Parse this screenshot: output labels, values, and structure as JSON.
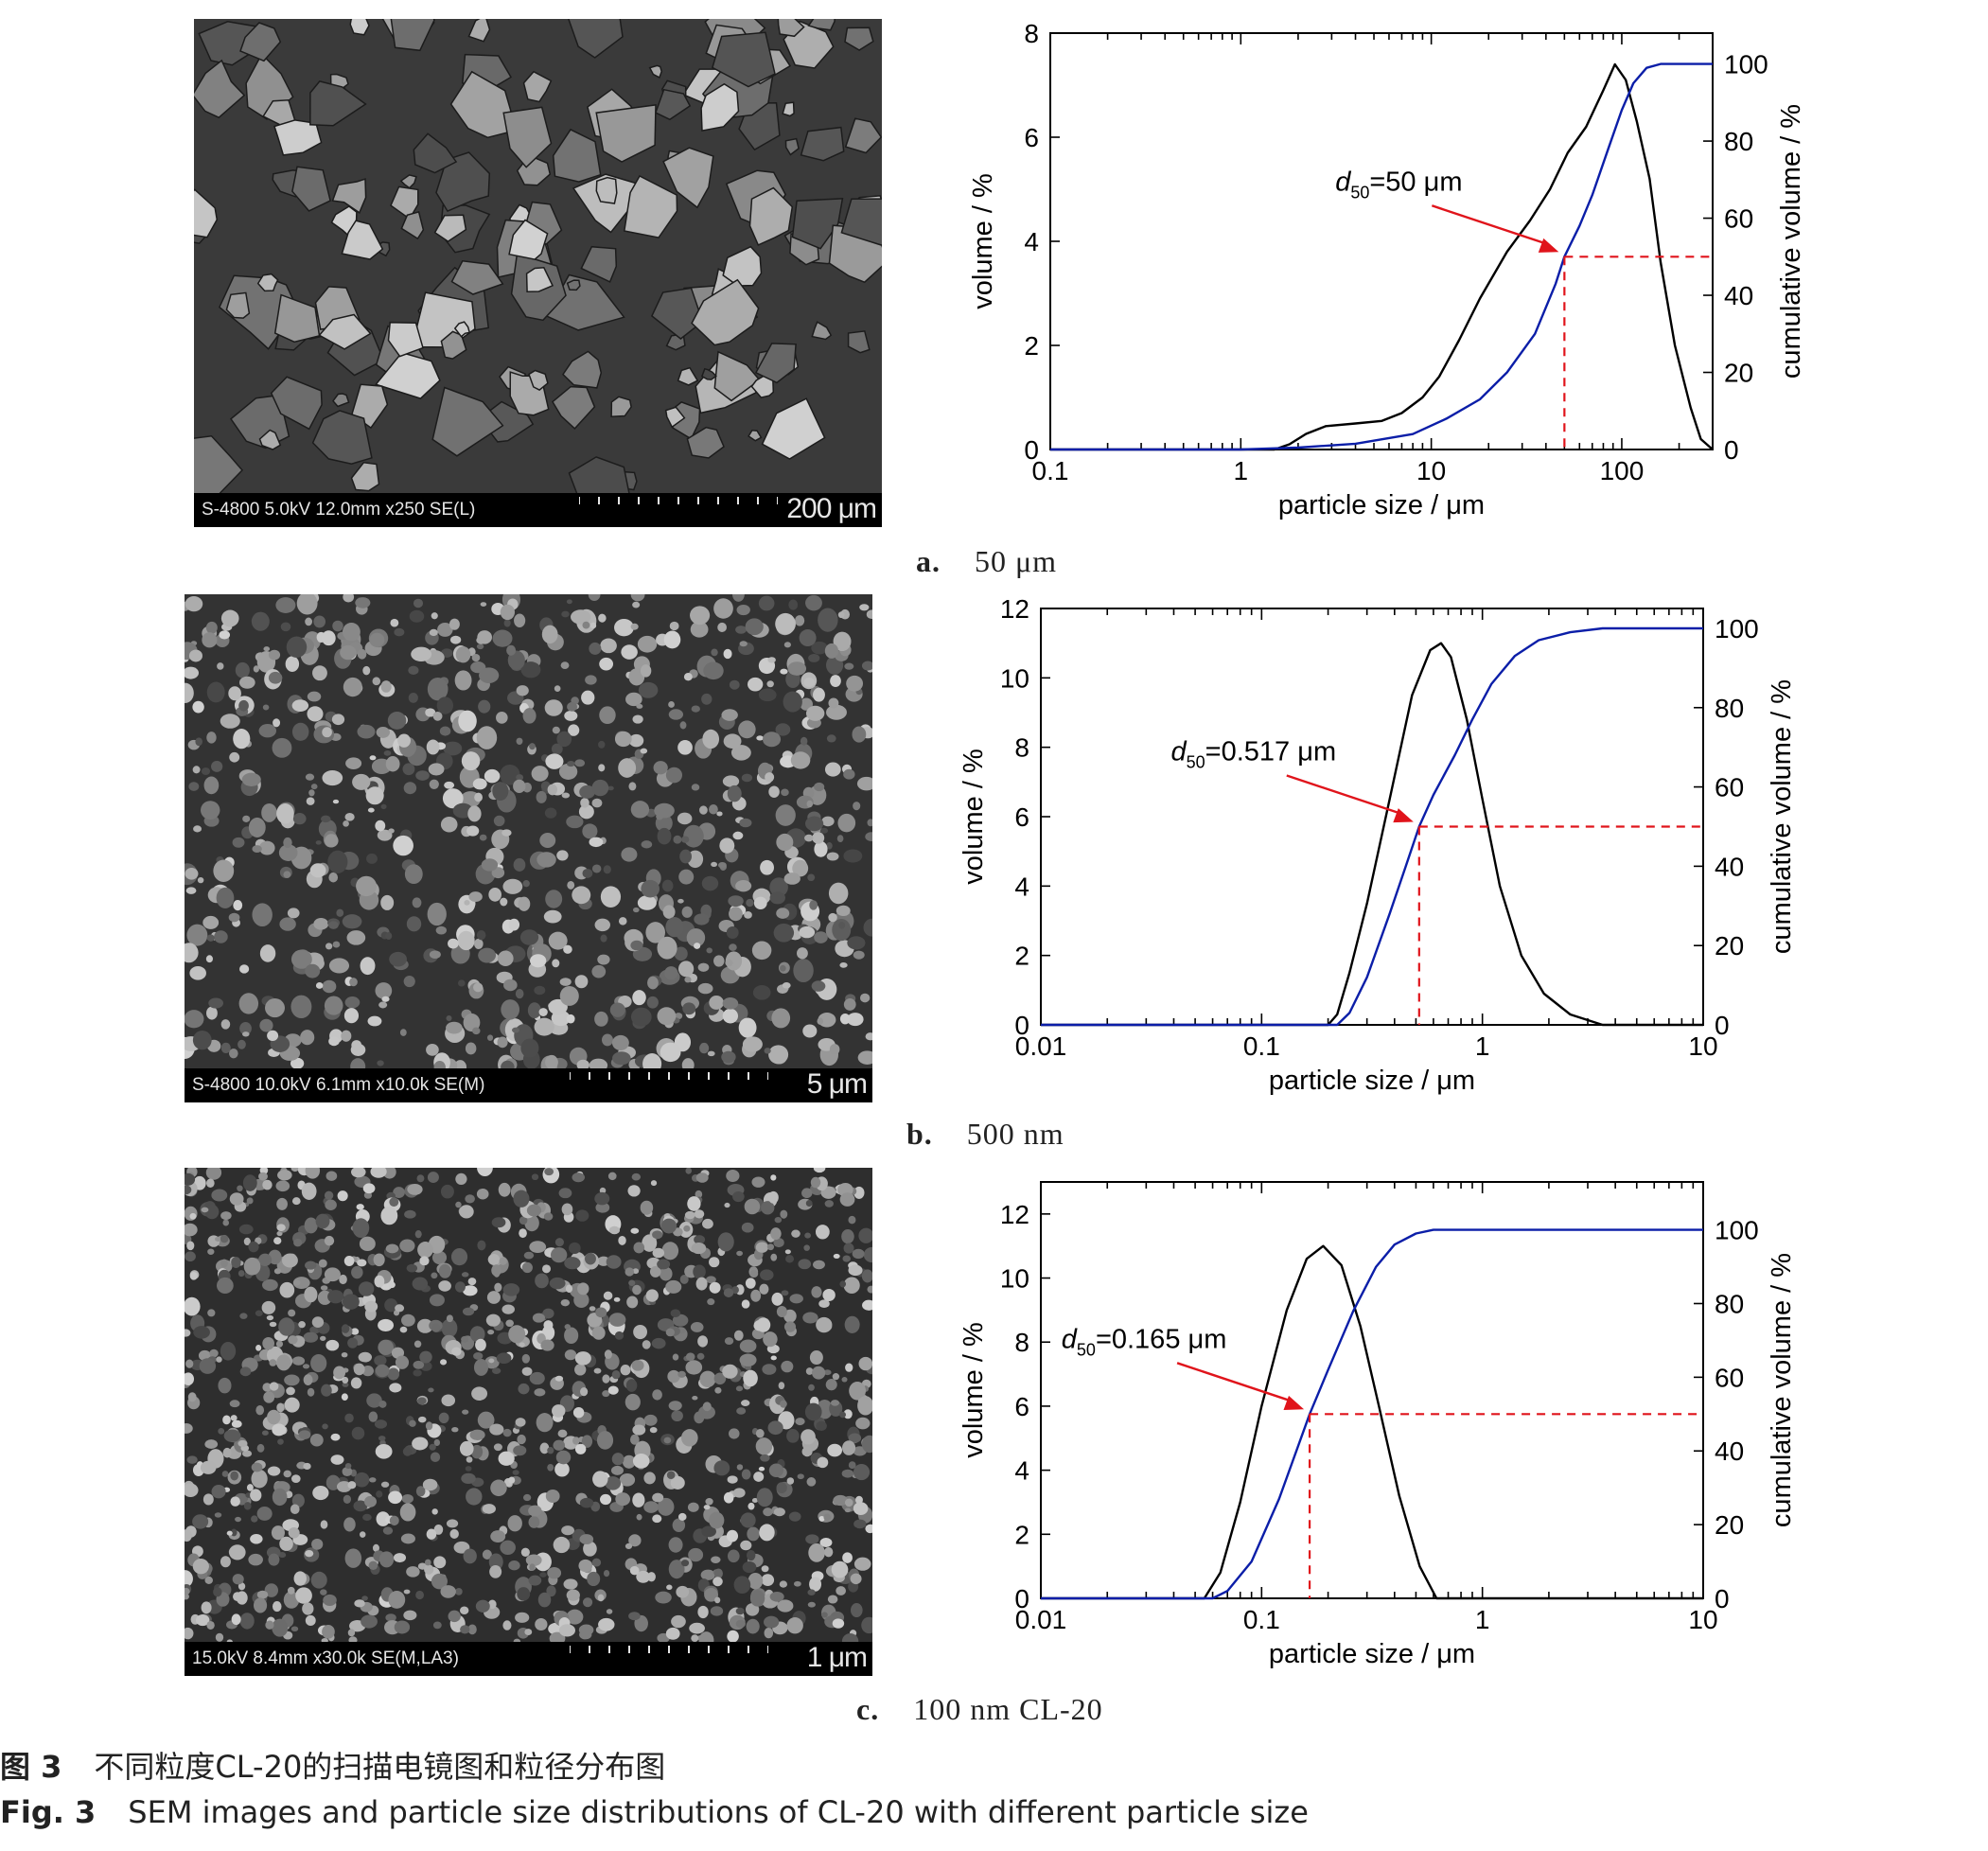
{
  "panels": [
    {
      "sem": {
        "info": "S-4800 5.0kV 12.0mm x250 SE(L)",
        "scale": "200 μm"
      },
      "caption": {
        "letter": "a.",
        "text": "50 μm"
      },
      "chart_data": {
        "type": "line",
        "xlabel": "particle size / μm",
        "ylabel": "volume / %",
        "y2label": "cumulative volume / %",
        "xscale": "log",
        "xlim": [
          0.1,
          300
        ],
        "xticks": [
          0.1,
          1,
          10,
          100
        ],
        "xticklabels": [
          "0.1",
          "1",
          "10",
          "100"
        ],
        "ylim": [
          0,
          8
        ],
        "yticks": [
          0,
          2,
          4,
          6,
          8
        ],
        "y2lim": [
          0,
          108
        ],
        "y2ticks": [
          0,
          20,
          40,
          60,
          80,
          100
        ],
        "series": [
          {
            "axis": "left",
            "color": "#000000",
            "x": [
              0.1,
              1.5,
              1.8,
              2.2,
              2.8,
              4,
              5.5,
              7,
              9,
              11,
              14,
              18,
              25,
              33,
              42,
              52,
              65,
              80,
              92,
              105,
              120,
              140,
              160,
              190,
              230,
              260,
              300
            ],
            "y": [
              0,
              0,
              0.1,
              0.3,
              0.45,
              0.5,
              0.55,
              0.7,
              1.0,
              1.4,
              2.1,
              2.9,
              3.8,
              4.4,
              5.0,
              5.7,
              6.2,
              6.9,
              7.4,
              7.1,
              6.3,
              5.2,
              3.6,
              2.0,
              0.8,
              0.2,
              0
            ]
          },
          {
            "axis": "right",
            "color": "#0b1ea8",
            "x": [
              0.1,
              1,
              2,
              4,
              8,
              12,
              18,
              25,
              35,
              45,
              50,
              60,
              70,
              85,
              100,
              115,
              135,
              160,
              200,
              300
            ],
            "y": [
              0,
              0,
              0.5,
              1.5,
              4,
              8,
              13,
              20,
              30,
              43,
              50,
              58,
              66,
              78,
              88,
              95,
              99,
              100,
              100,
              100
            ]
          }
        ],
        "d50": {
          "x": 50,
          "y": 50,
          "label_main": "d",
          "label_sub": "50",
          "label_rest": "=50 μm"
        }
      }
    },
    {
      "sem": {
        "info": "S-4800 10.0kV 6.1mm x10.0k SE(M)",
        "scale": "5 μm"
      },
      "caption": {
        "letter": "b.",
        "text": "500 nm"
      },
      "chart_data": {
        "type": "line",
        "xlabel": "particle size / μm",
        "ylabel": "volume / %",
        "y2label": "cumulative volume / %",
        "xscale": "log",
        "xlim": [
          0.01,
          10
        ],
        "xticks": [
          0.01,
          0.1,
          1,
          10
        ],
        "xticklabels": [
          "0.01",
          "0.1",
          "1",
          "10"
        ],
        "ylim": [
          0,
          12
        ],
        "yticks": [
          0,
          2,
          4,
          6,
          8,
          10,
          12
        ],
        "y2lim": [
          0,
          105
        ],
        "y2ticks": [
          0,
          20,
          40,
          60,
          80,
          100
        ],
        "series": [
          {
            "axis": "left",
            "color": "#000000",
            "x": [
              0.01,
              0.2,
              0.22,
              0.25,
              0.3,
              0.38,
              0.48,
              0.58,
              0.65,
              0.72,
              0.85,
              1.0,
              1.2,
              1.5,
              1.9,
              2.5,
              3.5,
              10
            ],
            "y": [
              0,
              0,
              0.3,
              1.5,
              3.5,
              6.5,
              9.5,
              10.8,
              11.0,
              10.6,
              8.8,
              6.5,
              4.0,
              2.0,
              0.9,
              0.3,
              0,
              0
            ]
          },
          {
            "axis": "right",
            "color": "#0b1ea8",
            "x": [
              0.01,
              0.22,
              0.25,
              0.3,
              0.38,
              0.45,
              0.517,
              0.6,
              0.75,
              0.9,
              1.1,
              1.4,
              1.8,
              2.5,
              3.5,
              10
            ],
            "y": [
              0,
              0,
              3,
              12,
              28,
              40,
              50,
              58,
              68,
              77,
              86,
              93,
              97,
              99,
              100,
              100
            ]
          }
        ],
        "d50": {
          "x": 0.517,
          "y": 50,
          "label_main": "d",
          "label_sub": "50",
          "label_rest": "=0.517 μm"
        }
      }
    },
    {
      "sem": {
        "info": "15.0kV 8.4mm x30.0k SE(M,LA3)",
        "scale": "1 μm"
      },
      "caption": {
        "letter": "c.",
        "text": "100 nm CL-20"
      },
      "chart_data": {
        "type": "line",
        "xlabel": "particle size / μm",
        "ylabel": "volume / %",
        "y2label": "cumulative volume / %",
        "xscale": "log",
        "xlim": [
          0.01,
          10
        ],
        "xticks": [
          0.01,
          0.1,
          1,
          10
        ],
        "xticklabels": [
          "0.01",
          "0.1",
          "1",
          "10"
        ],
        "ylim": [
          0,
          13
        ],
        "yticks": [
          0,
          2,
          4,
          6,
          8,
          10,
          12
        ],
        "y2lim": [
          0,
          113
        ],
        "y2ticks": [
          0,
          20,
          40,
          60,
          80,
          100
        ],
        "series": [
          {
            "axis": "left",
            "color": "#000000",
            "x": [
              0.01,
              0.055,
              0.065,
              0.08,
              0.1,
              0.13,
              0.16,
              0.19,
              0.23,
              0.28,
              0.34,
              0.42,
              0.52,
              0.62,
              10
            ],
            "y": [
              0,
              0,
              0.8,
              3.0,
              6.0,
              9.0,
              10.6,
              11.0,
              10.4,
              8.5,
              6.0,
              3.2,
              1.0,
              0,
              0
            ]
          },
          {
            "axis": "right",
            "color": "#0b1ea8",
            "x": [
              0.01,
              0.06,
              0.07,
              0.09,
              0.12,
              0.165,
              0.2,
              0.26,
              0.33,
              0.4,
              0.5,
              0.6,
              1,
              10
            ],
            "y": [
              0,
              0,
              2,
              10,
              27,
              50,
              62,
              78,
              90,
              96,
              99,
              100,
              100,
              100
            ]
          }
        ],
        "d50": {
          "x": 0.165,
          "y": 50,
          "label_main": "d",
          "label_sub": "50",
          "label_rest": "=0.165 μm"
        }
      }
    }
  ],
  "figure_caption": {
    "cn_label": "图 3",
    "cn_text": "不同粒度CL-20的扫描电镜图和粒径分布图",
    "en_label": "Fig. 3",
    "en_text": "SEM images and particle size distributions of CL-20 with different particle size"
  },
  "colors": {
    "volume_curve": "#000000",
    "cumulative_curve": "#0b1ea8",
    "d50_marker": "#e0141b"
  }
}
